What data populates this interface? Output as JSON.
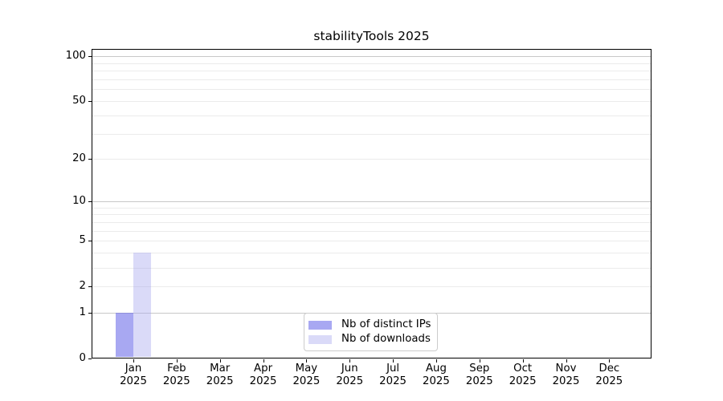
{
  "title": "stabilityTools 2025",
  "chart_data": {
    "type": "bar",
    "title": "stabilityTools 2025",
    "x_categories": [
      "Jan",
      "Feb",
      "Mar",
      "Apr",
      "May",
      "Jun",
      "Jul",
      "Aug",
      "Sep",
      "Oct",
      "Nov",
      "Dec"
    ],
    "x_year_label": "2025",
    "series": [
      {
        "name": "Nb of distinct IPs",
        "color": "rgba(97,97,231,0.55)",
        "approx_hex_on_white": "#a8a8f2",
        "values": [
          1,
          0,
          0,
          0,
          0,
          0,
          0,
          0,
          0,
          0,
          0,
          0
        ]
      },
      {
        "name": "Nb of downloads",
        "color": "rgba(167,167,238,0.42)",
        "approx_hex_on_white": "#dadaf8",
        "values": [
          4,
          0,
          0,
          0,
          0,
          0,
          0,
          0,
          0,
          0,
          0,
          0
        ]
      }
    ],
    "y_scale": "log1p (linear 0-1, log above)",
    "y_tick_values": [
      0,
      1,
      2,
      5,
      10,
      20,
      50,
      100
    ],
    "y_major_grid_values": [
      1,
      10,
      100
    ],
    "y_minor_grid_values": [
      2,
      3,
      4,
      5,
      6,
      7,
      8,
      9,
      20,
      30,
      40,
      50,
      60,
      70,
      80,
      90
    ],
    "ylim": [
      0,
      112
    ],
    "grid": "horizontal only, major darker than minor",
    "legend_position": "lower center",
    "colors": {
      "major_grid": "#c8c8c8",
      "minor_grid": "#ebebeb",
      "axis": "#000000",
      "legend_border": "#cccccc"
    }
  }
}
